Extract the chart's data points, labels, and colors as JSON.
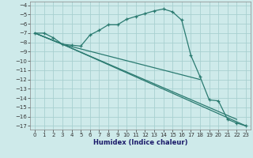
{
  "xlabel": "Humidex (Indice chaleur)",
  "background_color": "#ceeaea",
  "grid_color": "#a8d0d0",
  "line_color": "#2a7a70",
  "xlim": [
    -0.5,
    23.5
  ],
  "ylim": [
    -17.4,
    -3.6
  ],
  "xticks": [
    0,
    1,
    2,
    3,
    4,
    5,
    6,
    7,
    8,
    9,
    10,
    11,
    12,
    13,
    14,
    15,
    16,
    17,
    18,
    19,
    20,
    21,
    22,
    23
  ],
  "yticks": [
    -17,
    -16,
    -15,
    -14,
    -13,
    -12,
    -11,
    -10,
    -9,
    -8,
    -7,
    -6,
    -5,
    -4
  ],
  "curve1_x": [
    0,
    1,
    2,
    3,
    4,
    5,
    6,
    7,
    8,
    9,
    10,
    11,
    12,
    13,
    14,
    15,
    16,
    17,
    18,
    19,
    20,
    21,
    22,
    23
  ],
  "curve1_y": [
    -7.0,
    -7.0,
    -7.5,
    -8.2,
    -8.3,
    -8.4,
    -7.2,
    -6.7,
    -6.1,
    -6.1,
    -5.5,
    -5.2,
    -4.9,
    -4.6,
    -4.4,
    -4.7,
    -5.6,
    -9.4,
    -11.7,
    -14.2,
    -14.3,
    -16.3,
    -16.7,
    -17.0
  ],
  "curve2_x": [
    0,
    3,
    23
  ],
  "curve2_y": [
    -7.0,
    -8.2,
    -17.0
  ],
  "curve3_x": [
    0,
    3,
    22
  ],
  "curve3_y": [
    -7.0,
    -8.2,
    -16.3
  ],
  "curve4_x": [
    0,
    3,
    18
  ],
  "curve4_y": [
    -7.0,
    -8.2,
    -12.0
  ]
}
